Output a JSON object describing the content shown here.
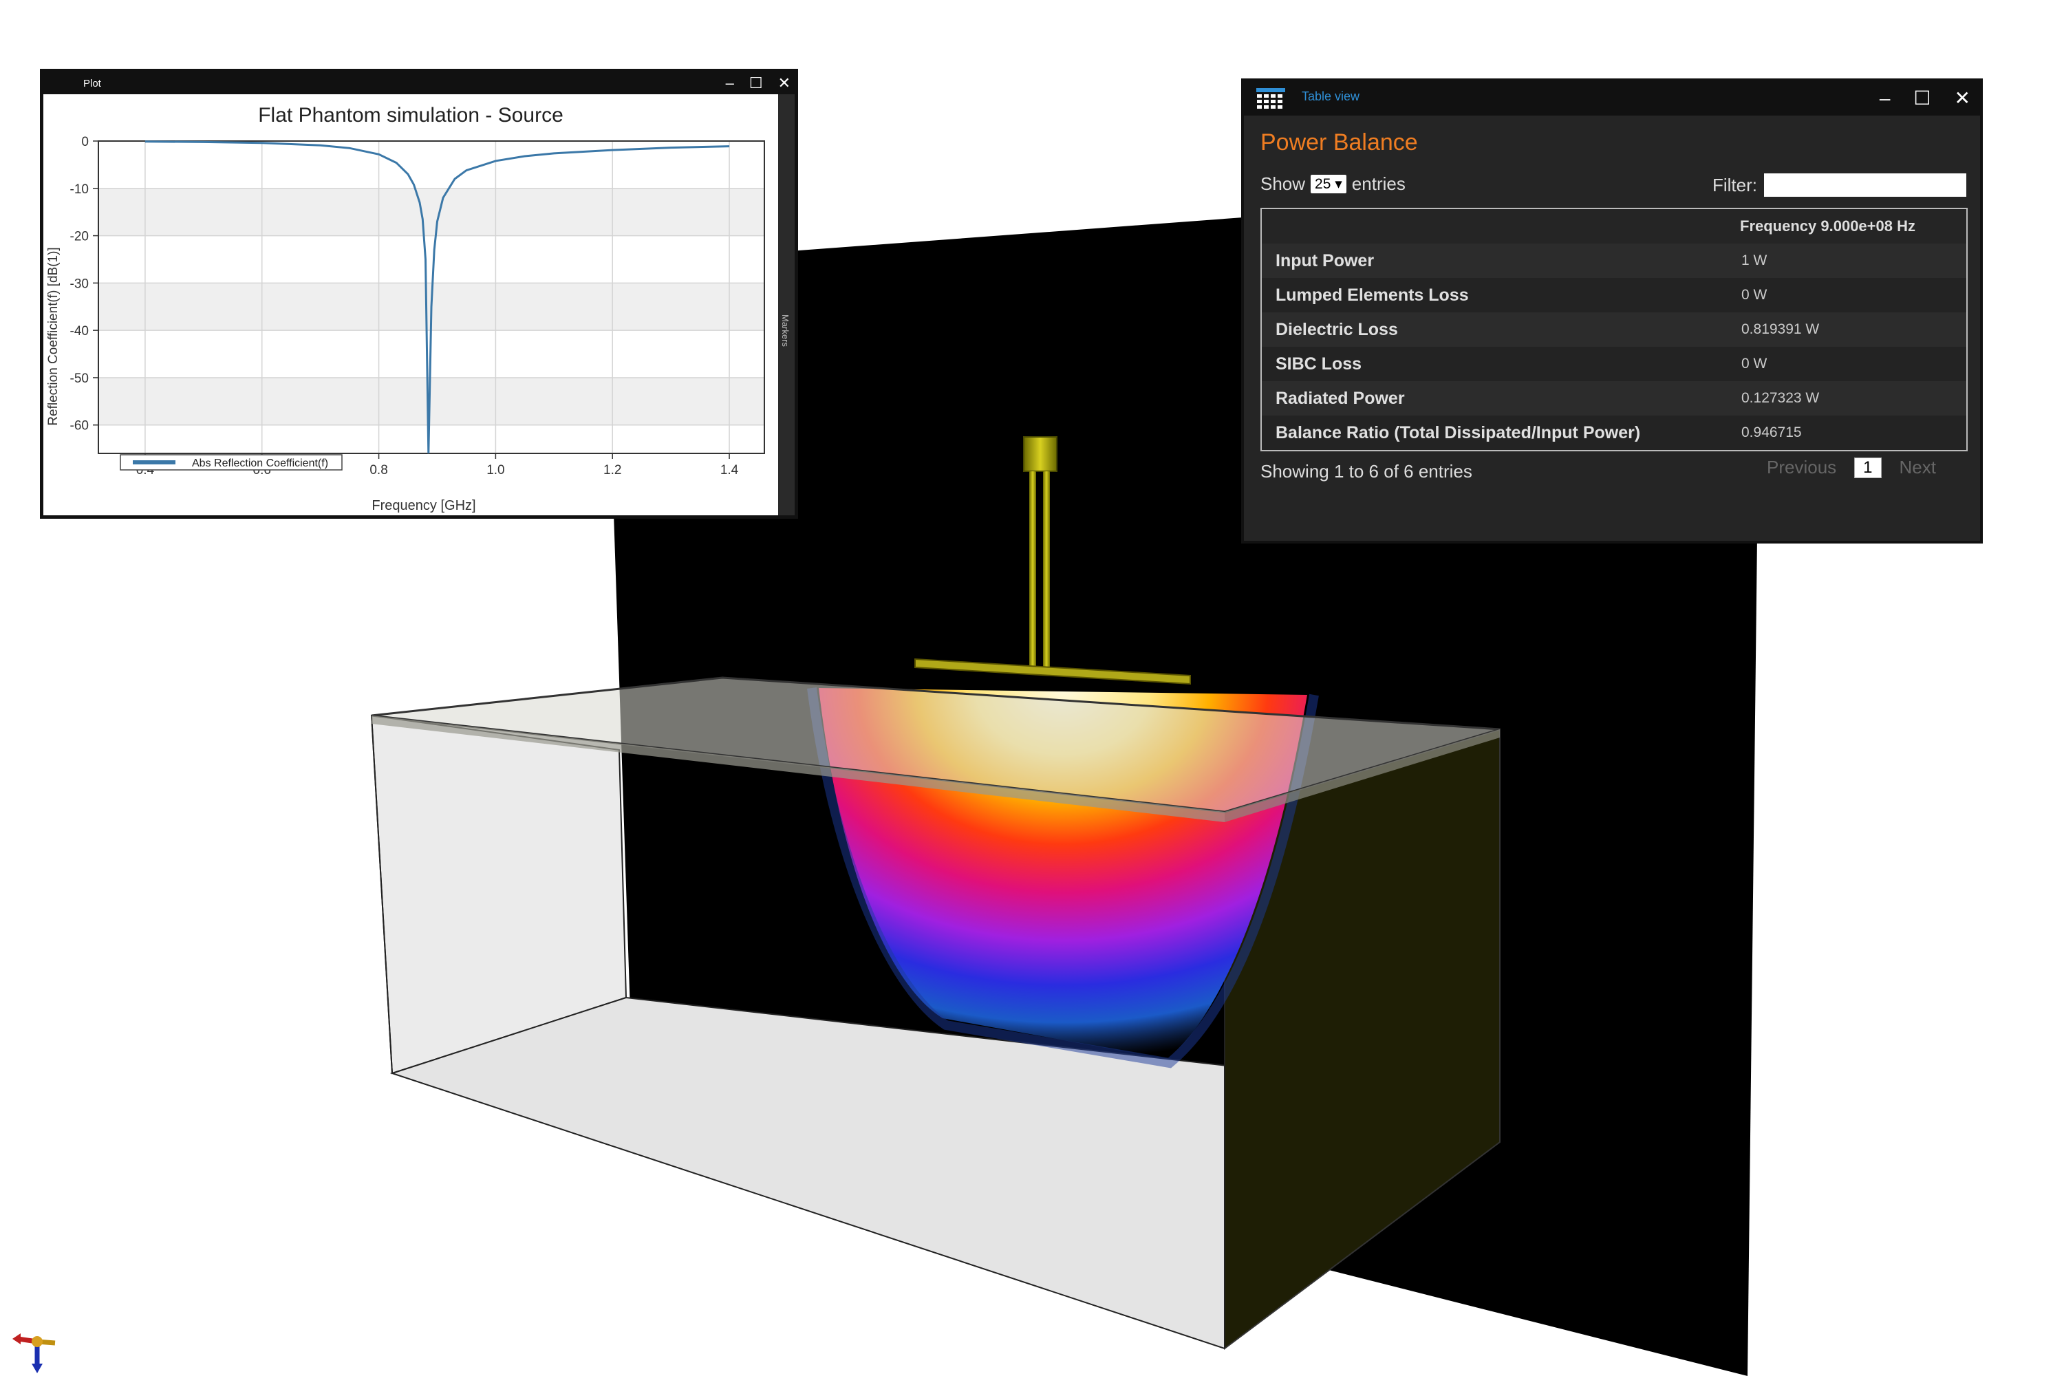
{
  "plot_window": {
    "title": "Plot",
    "side_tab": "Markers"
  },
  "chart_data": {
    "type": "line",
    "title": "Flat Phantom simulation - Source",
    "xlabel": "Frequency [GHz]",
    "ylabel": "Reflection Coefficient(f) [dB(1)]",
    "xlim": [
      0.32,
      1.46
    ],
    "ylim": [
      -66,
      0
    ],
    "xticks": [
      "0.4",
      "0.6",
      "0.8",
      "1.0",
      "1.2",
      "1.4"
    ],
    "yticks": [
      "0",
      "-10",
      "-20",
      "-30",
      "-40",
      "-50",
      "-60"
    ],
    "grid": true,
    "legend_position": "bottom-left",
    "series": [
      {
        "name": "Abs Reflection Coefficient(f)",
        "color": "#3b78a8",
        "x": [
          0.4,
          0.5,
          0.6,
          0.7,
          0.75,
          0.8,
          0.83,
          0.85,
          0.86,
          0.87,
          0.875,
          0.88,
          0.885,
          0.89,
          0.895,
          0.9,
          0.91,
          0.93,
          0.95,
          1.0,
          1.05,
          1.1,
          1.2,
          1.3,
          1.4
        ],
        "y": [
          -0.1,
          -0.2,
          -0.4,
          -0.9,
          -1.5,
          -2.8,
          -4.6,
          -7.0,
          -9.2,
          -13.0,
          -16.5,
          -25.0,
          -66.0,
          -35.0,
          -23.0,
          -17.0,
          -12.0,
          -8.0,
          -6.2,
          -4.2,
          -3.2,
          -2.6,
          -1.9,
          -1.4,
          -1.1
        ]
      }
    ]
  },
  "table_window": {
    "title": "Table view",
    "heading": "Power Balance",
    "show_label": "Show",
    "show_value": "25",
    "entries_label": "entries",
    "filter_label": "Filter:",
    "filter_value": "",
    "column_header": "Frequency 9.000e+08 Hz",
    "rows": [
      {
        "label": "Input Power",
        "value": "1 W"
      },
      {
        "label": "Lumped Elements Loss",
        "value": "0 W"
      },
      {
        "label": "Dielectric Loss",
        "value": "0.819391 W"
      },
      {
        "label": "SIBC Loss",
        "value": "0 W"
      },
      {
        "label": "Radiated Power",
        "value": "0.127323 W"
      },
      {
        "label": "Balance Ratio (Total Dissipated/Input Power)",
        "value": "0.946715"
      }
    ],
    "info": "Showing 1 to 6 of 6 entries",
    "previous": "Previous",
    "page": "1",
    "next": "Next"
  }
}
